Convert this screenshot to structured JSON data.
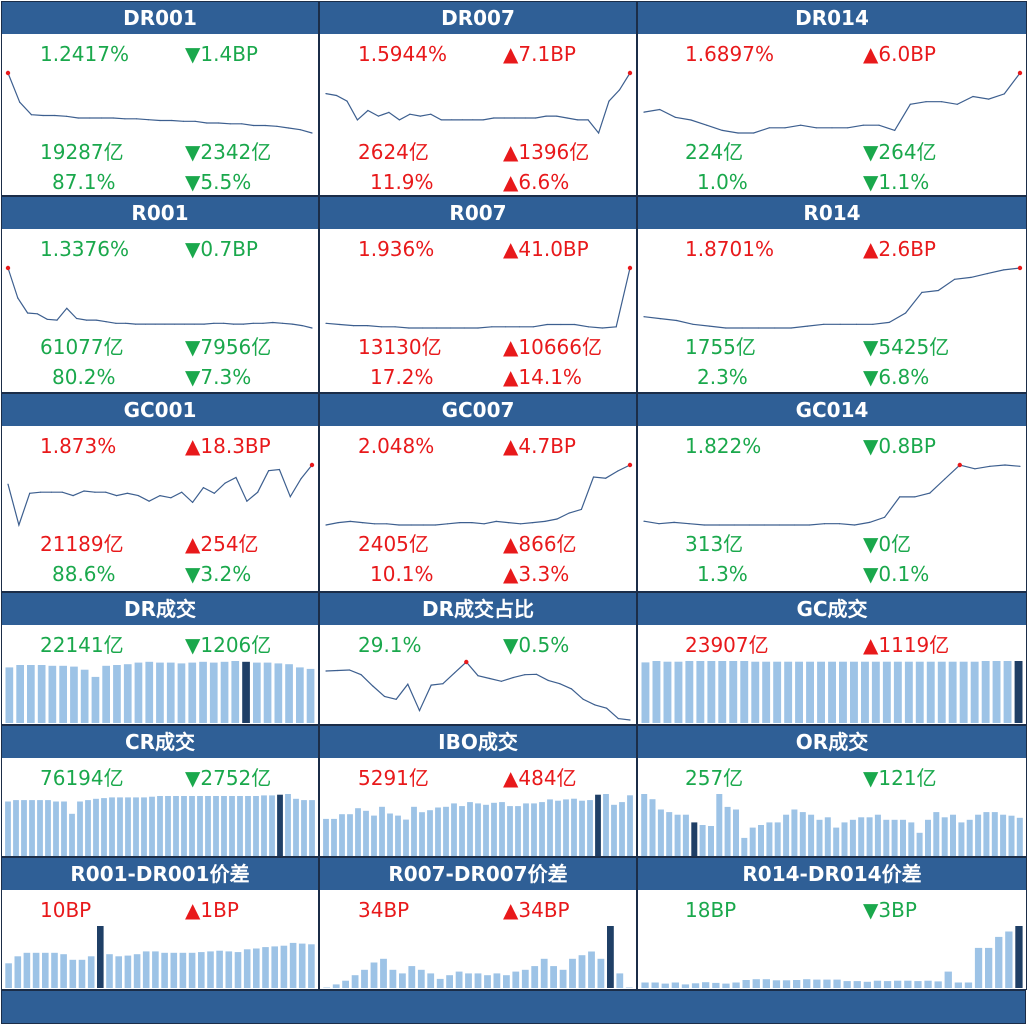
{
  "colors": {
    "header_bg": "#2f5f96",
    "up": "#e8191b",
    "down": "#1aa84c",
    "line": "#3d5f8f",
    "bar": "#9dc3e6",
    "bar_highlight": "#1f3f66",
    "marker": "#e8191b"
  },
  "chart_data": [
    {
      "type": "line",
      "title": "DR001",
      "rate": "1.2417%",
      "rate_dir": "down",
      "rate_chg": "▼1.4BP",
      "rate_chg_dir": "down",
      "volume": "19287亿",
      "volume_dir": "down",
      "volume_chg": "▼2342亿",
      "volume_chg_dir": "down",
      "share": "87.1%",
      "share_dir": "down",
      "share_chg": "▼5.5%",
      "share_chg_dir": "down",
      "y": [
        2.0,
        1.65,
        1.5,
        1.49,
        1.49,
        1.48,
        1.46,
        1.46,
        1.46,
        1.46,
        1.45,
        1.45,
        1.44,
        1.43,
        1.43,
        1.42,
        1.42,
        1.4,
        1.4,
        1.39,
        1.39,
        1.37,
        1.37,
        1.36,
        1.34,
        1.32,
        1.28
      ],
      "marker": [
        0
      ]
    },
    {
      "type": "line",
      "title": "DR007",
      "rate": "1.5944%",
      "rate_dir": "up",
      "rate_chg": "▲7.1BP",
      "rate_chg_dir": "up",
      "volume": "2624亿",
      "volume_dir": "up",
      "volume_chg": "▲1396亿",
      "volume_chg_dir": "up",
      "share": "11.9%",
      "share_dir": "up",
      "share_chg": "▲6.6%",
      "share_chg_dir": "up",
      "y": [
        1.64,
        1.63,
        1.6,
        1.5,
        1.55,
        1.52,
        1.54,
        1.5,
        1.53,
        1.52,
        1.53,
        1.5,
        1.5,
        1.5,
        1.5,
        1.5,
        1.51,
        1.51,
        1.51,
        1.51,
        1.51,
        1.52,
        1.52,
        1.51,
        1.5,
        1.5,
        1.43,
        1.6,
        1.66,
        1.75
      ],
      "marker": [
        29
      ]
    },
    {
      "type": "line",
      "title": "DR014",
      "rate": "1.6897%",
      "rate_dir": "up",
      "rate_chg": "▲6.0BP",
      "rate_chg_dir": "up",
      "volume": "224亿",
      "volume_dir": "down",
      "volume_chg": "▼264亿",
      "volume_chg_dir": "down",
      "share": "1.0%",
      "share_dir": "down",
      "share_chg": "▼1.1%",
      "share_chg_dir": "down",
      "y": [
        1.55,
        1.56,
        1.53,
        1.52,
        1.5,
        1.48,
        1.47,
        1.47,
        1.49,
        1.49,
        1.5,
        1.49,
        1.49,
        1.49,
        1.5,
        1.5,
        1.48,
        1.58,
        1.59,
        1.59,
        1.58,
        1.61,
        1.6,
        1.62,
        1.7
      ],
      "marker": [
        24
      ]
    },
    {
      "type": "line",
      "title": "R001",
      "rate": "1.3376%",
      "rate_dir": "down",
      "rate_chg": "▼0.7BP",
      "rate_chg_dir": "down",
      "volume": "61077亿",
      "volume_dir": "down",
      "volume_chg": "▼7956亿",
      "volume_chg_dir": "down",
      "share": "80.2%",
      "share_dir": "down",
      "share_chg": "▼7.3%",
      "share_chg_dir": "down",
      "y": [
        2.1,
        1.72,
        1.53,
        1.52,
        1.45,
        1.44,
        1.59,
        1.46,
        1.44,
        1.44,
        1.42,
        1.4,
        1.4,
        1.39,
        1.39,
        1.39,
        1.39,
        1.39,
        1.39,
        1.39,
        1.39,
        1.4,
        1.4,
        1.39,
        1.39,
        1.4,
        1.4,
        1.41,
        1.4,
        1.39,
        1.37,
        1.34
      ],
      "marker": [
        0
      ]
    },
    {
      "type": "line",
      "title": "R007",
      "rate": "1.936%",
      "rate_dir": "up",
      "rate_chg": "▲41.0BP",
      "rate_chg_dir": "up",
      "volume": "13130亿",
      "volume_dir": "up",
      "volume_chg": "▲10666亿",
      "volume_chg_dir": "up",
      "share": "17.2%",
      "share_dir": "up",
      "share_chg": "▲14.1%",
      "share_chg_dir": "up",
      "y": [
        1.46,
        1.45,
        1.44,
        1.44,
        1.43,
        1.43,
        1.42,
        1.42,
        1.42,
        1.42,
        1.42,
        1.42,
        1.43,
        1.43,
        1.43,
        1.43,
        1.45,
        1.45,
        1.45,
        1.43,
        1.42,
        1.43,
        1.93
      ],
      "marker": [
        22
      ]
    },
    {
      "type": "line",
      "title": "R014",
      "rate": "1.8701%",
      "rate_dir": "up",
      "rate_chg": "▲2.6BP",
      "rate_chg_dir": "up",
      "volume": "1755亿",
      "volume_dir": "down",
      "volume_chg": "▼5425亿",
      "volume_chg_dir": "down",
      "share": "2.3%",
      "share_dir": "down",
      "share_chg": "▼6.8%",
      "share_chg_dir": "down",
      "y": [
        1.61,
        1.6,
        1.59,
        1.57,
        1.56,
        1.55,
        1.55,
        1.55,
        1.55,
        1.55,
        1.56,
        1.57,
        1.57,
        1.57,
        1.57,
        1.58,
        1.63,
        1.74,
        1.75,
        1.81,
        1.82,
        1.84,
        1.86,
        1.87
      ],
      "marker": [
        23
      ]
    },
    {
      "type": "line",
      "title": "GC001",
      "rate": "1.873%",
      "rate_dir": "up",
      "rate_chg": "▲18.3BP",
      "rate_chg_dir": "up",
      "volume": "21189亿",
      "volume_dir": "up",
      "volume_chg": "▲254亿",
      "volume_chg_dir": "up",
      "share": "88.6%",
      "share_dir": "down",
      "share_chg": "▼3.2%",
      "share_chg_dir": "down",
      "y": [
        1.7,
        1.34,
        1.62,
        1.63,
        1.63,
        1.63,
        1.6,
        1.64,
        1.63,
        1.63,
        1.6,
        1.62,
        1.6,
        1.55,
        1.6,
        1.58,
        1.63,
        1.54,
        1.67,
        1.62,
        1.71,
        1.76,
        1.55,
        1.63,
        1.82,
        1.83,
        1.59,
        1.75,
        1.87
      ],
      "marker": [
        28
      ]
    },
    {
      "type": "line",
      "title": "GC007",
      "rate": "2.048%",
      "rate_dir": "up",
      "rate_chg": "▲4.7BP",
      "rate_chg_dir": "up",
      "volume": "2405亿",
      "volume_dir": "up",
      "volume_chg": "▲866亿",
      "volume_chg_dir": "up",
      "share": "10.1%",
      "share_dir": "up",
      "share_chg": "▲3.3%",
      "share_chg_dir": "up",
      "y": [
        1.55,
        1.57,
        1.58,
        1.57,
        1.56,
        1.56,
        1.55,
        1.55,
        1.55,
        1.55,
        1.56,
        1.57,
        1.57,
        1.56,
        1.58,
        1.57,
        1.56,
        1.57,
        1.58,
        1.6,
        1.65,
        1.68,
        1.95,
        1.94,
        2.0,
        2.05
      ],
      "marker": [
        25
      ]
    },
    {
      "type": "line",
      "title": "GC014",
      "rate": "1.822%",
      "rate_dir": "down",
      "rate_chg": "▼0.8BP",
      "rate_chg_dir": "down",
      "volume": "313亿",
      "volume_dir": "down",
      "volume_chg": "▼0亿",
      "volume_chg_dir": "down",
      "share": "1.3%",
      "share_dir": "down",
      "share_chg": "▼0.1%",
      "share_chg_dir": "down",
      "y": [
        1.39,
        1.37,
        1.38,
        1.37,
        1.36,
        1.36,
        1.36,
        1.36,
        1.36,
        1.36,
        1.36,
        1.36,
        1.37,
        1.37,
        1.36,
        1.38,
        1.42,
        1.58,
        1.58,
        1.61,
        1.72,
        1.83,
        1.8,
        1.82,
        1.83,
        1.82
      ],
      "marker": [
        21
      ]
    },
    {
      "type": "bar",
      "title": "DR成交",
      "primary": "22141亿",
      "primary_dir": "down",
      "change": "▼1206亿",
      "change_dir": "down",
      "values": [
        70,
        73,
        73,
        73,
        72,
        72,
        71,
        67,
        58,
        72,
        73,
        74,
        76,
        77,
        76,
        76,
        75,
        76,
        77,
        76,
        77,
        78,
        77,
        76,
        76,
        75,
        74,
        70,
        68
      ],
      "highlight": [
        22
      ]
    },
    {
      "type": "line",
      "title": "DR成交占比",
      "primary": "29.1%",
      "primary_dir": "down",
      "change": "▼0.5%",
      "change_dir": "down",
      "y": [
        39.5,
        39.6,
        39.7,
        38.7,
        36.3,
        34.1,
        33.5,
        36.7,
        31.1,
        36.5,
        36.8,
        39.1,
        41.4,
        38.5,
        37.9,
        37.3,
        38.1,
        38.7,
        38.8,
        37.5,
        36.8,
        35.7,
        33.5,
        32.3,
        31.6,
        29.4,
        29.1
      ],
      "marker": [
        12
      ]
    },
    {
      "type": "bar",
      "title": "GC成交",
      "primary": "23907亿",
      "primary_dir": "up",
      "change": "▲1119亿",
      "change_dir": "up",
      "values": [
        85,
        87,
        86,
        86,
        87,
        87,
        87,
        87,
        87,
        87,
        86,
        86,
        86,
        86,
        86,
        86,
        86,
        86,
        86,
        86,
        86,
        86,
        86,
        86,
        86,
        86,
        86,
        86,
        86,
        86,
        86,
        87,
        87,
        87,
        87
      ],
      "highlight": [
        34
      ]
    },
    {
      "type": "bar",
      "title": "CR成交",
      "primary": "76194亿",
      "primary_dir": "down",
      "change": "▼2752亿",
      "change_dir": "down",
      "values": [
        80,
        82,
        82,
        82,
        82,
        82,
        80,
        80,
        62,
        80,
        82,
        84,
        85,
        86,
        86,
        86,
        86,
        86,
        87,
        88,
        88,
        88,
        88,
        88,
        88,
        88,
        88,
        88,
        88,
        88,
        88,
        88,
        89,
        89,
        90,
        91,
        84,
        82,
        82
      ],
      "highlight": [
        34
      ]
    },
    {
      "type": "bar",
      "title": "IBO成交",
      "primary": "5291亿",
      "primary_dir": "up",
      "change": "▲484亿",
      "change_dir": "up",
      "values": [
        55,
        55,
        62,
        62,
        71,
        67,
        60,
        73,
        63,
        60,
        54,
        73,
        65,
        68,
        72,
        73,
        78,
        74,
        80,
        78,
        76,
        79,
        80,
        74,
        74,
        78,
        78,
        80,
        84,
        82,
        84,
        85,
        82,
        83,
        91,
        92,
        76,
        80,
        90
      ],
      "highlight": [
        34
      ]
    },
    {
      "type": "bar",
      "title": "OR成交",
      "primary": "257亿",
      "primary_dir": "down",
      "change": "▼121亿",
      "change_dir": "down",
      "values": [
        120,
        110,
        90,
        85,
        80,
        80,
        65,
        60,
        58,
        120,
        95,
        90,
        35,
        55,
        60,
        65,
        65,
        80,
        90,
        85,
        80,
        70,
        75,
        55,
        65,
        70,
        75,
        75,
        80,
        70,
        70,
        70,
        65,
        45,
        70,
        85,
        75,
        80,
        65,
        70,
        80,
        85,
        85,
        80,
        78,
        74
      ],
      "highlight": [
        6
      ]
    },
    {
      "type": "bar",
      "title": "R001-DR001价差",
      "primary": "10BP",
      "primary_dir": "up",
      "change": "▲1BP",
      "change_dir": "up",
      "values": [
        3.5,
        4.5,
        5.0,
        5.0,
        5.0,
        5.0,
        4.8,
        4.0,
        4.0,
        4.5,
        8.8,
        4.8,
        4.5,
        4.6,
        4.8,
        5.2,
        5.2,
        5.0,
        5.0,
        5.0,
        5.0,
        5.1,
        5.2,
        5.3,
        5.2,
        5.1,
        5.5,
        5.6,
        5.8,
        5.9,
        6.0,
        6.4,
        6.3,
        6.2
      ],
      "highlight": [
        10
      ]
    },
    {
      "type": "bar",
      "title": "R007-DR007价差",
      "primary": "34BP",
      "primary_dir": "up",
      "change": "▲34BP",
      "change_dir": "up",
      "values": [
        0,
        2,
        4,
        7,
        10,
        14,
        16,
        10,
        8,
        12,
        10,
        8,
        5,
        7,
        9,
        8,
        8,
        7,
        8,
        7,
        9,
        10,
        12,
        16,
        12,
        10,
        16,
        18,
        20,
        16,
        34,
        8,
        0
      ],
      "highlight": [
        30
      ]
    },
    {
      "type": "bar",
      "title": "R014-DR014价差",
      "primary": "18BP",
      "primary_dir": "down",
      "change": "▼3BP",
      "change_dir": "down",
      "values": [
        1.5,
        1.5,
        1.2,
        1.5,
        1.0,
        1.3,
        1.6,
        1.4,
        1.2,
        1.5,
        2.2,
        2.4,
        2.4,
        2.1,
        2.1,
        2.2,
        2.4,
        2.3,
        2.3,
        2.3,
        1.9,
        1.9,
        1.7,
        2.0,
        1.9,
        2.0,
        2.0,
        1.9,
        2.0,
        1.8,
        4.5,
        1.5,
        1.5,
        11,
        11,
        14,
        15.5,
        17
      ],
      "highlight": [
        37
      ]
    }
  ]
}
